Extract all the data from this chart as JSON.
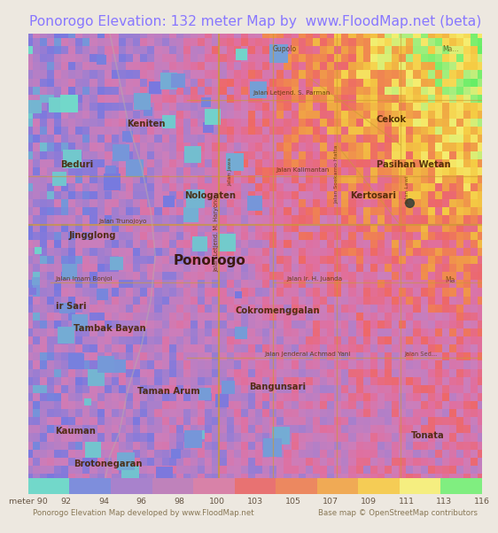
{
  "title": "Ponorogo Elevation: 132 meter Map by  www.FloodMap.net (beta)",
  "title_color": "#8877ff",
  "bg_color": "#ede8e0",
  "colorbar_colors": [
    "#72d8ca",
    "#7e8edc",
    "#a882cc",
    "#bf82bb",
    "#d882a8",
    "#e87272",
    "#ec8860",
    "#f0aa55",
    "#f5cc55",
    "#f5ee80",
    "#80ee80"
  ],
  "colorbar_labels": [
    "meter 90",
    "92",
    "94",
    "96",
    "98",
    "100",
    "103",
    "105",
    "107",
    "109",
    "111",
    "113",
    "116"
  ],
  "footer_left": "Ponorogo Elevation Map developed by www.FloodMap.net",
  "footer_right": "Base map © OpenStreetMap contributors",
  "footer_color": "#887755",
  "road_color": "#cc9933",
  "text_dark": "#553300",
  "text_place": "#553300"
}
